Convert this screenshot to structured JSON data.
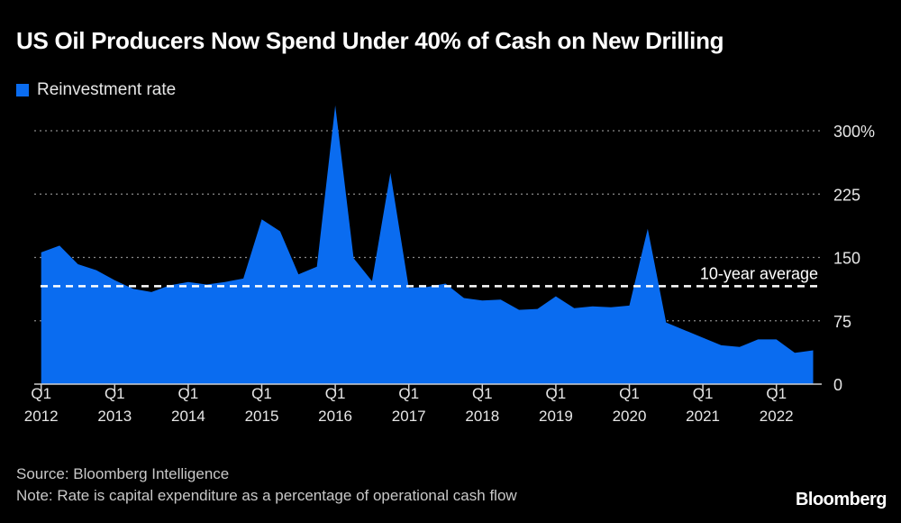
{
  "chart_data": {
    "type": "area",
    "title": "US Oil Producers Now Spend Under 40% of Cash on New Drilling",
    "legend": [
      {
        "name": "Reinvestment rate",
        "color": "#0a6cf0"
      }
    ],
    "legend_placement": "top-left",
    "series": [
      {
        "name": "Reinvestment rate",
        "color": "#0a6cf0",
        "values": [
          156,
          164,
          142,
          135,
          123,
          113,
          109,
          117,
          121,
          118,
          121,
          125,
          195,
          181,
          130,
          139,
          330,
          149,
          122,
          250,
          114,
          115,
          119,
          102,
          99,
          100,
          88,
          89,
          104,
          90,
          92,
          91,
          93,
          184,
          73,
          64,
          55,
          46,
          44,
          53,
          53,
          37,
          40
        ]
      }
    ],
    "x_start": "Q1 2012",
    "x_end": "Q3 2022",
    "x_frequency": "quarterly",
    "x_tick_labels": [
      {
        "q": "Q1",
        "year": "2012"
      },
      {
        "q": "Q1",
        "year": "2013"
      },
      {
        "q": "Q1",
        "year": "2014"
      },
      {
        "q": "Q1",
        "year": "2015"
      },
      {
        "q": "Q1",
        "year": "2016"
      },
      {
        "q": "Q1",
        "year": "2017"
      },
      {
        "q": "Q1",
        "year": "2018"
      },
      {
        "q": "Q1",
        "year": "2019"
      },
      {
        "q": "Q1",
        "year": "2020"
      },
      {
        "q": "Q1",
        "year": "2021"
      },
      {
        "q": "Q1",
        "year": "2022"
      }
    ],
    "y_ticks": [
      0,
      75,
      150,
      225,
      300
    ],
    "y_tick_labels": [
      "0",
      "75",
      "150",
      "225",
      "300%"
    ],
    "ylim": [
      0,
      330
    ],
    "y_axis_side": "right",
    "grid": true,
    "reference_line": {
      "label": "10-year average",
      "value": 116,
      "color": "#ffffff"
    }
  },
  "source": "Source: Bloomberg Intelligence",
  "note": "Note: Rate is capital expenditure as a percentage of operational cash flow",
  "logo": "Bloomberg"
}
